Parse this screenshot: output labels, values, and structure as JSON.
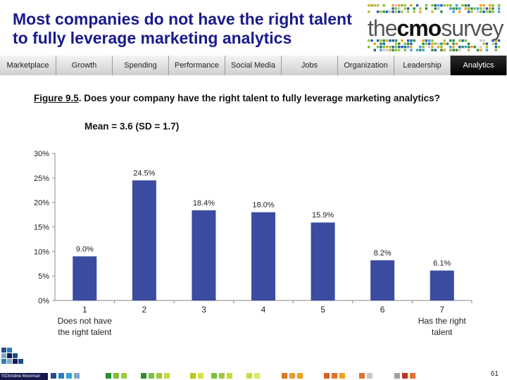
{
  "title": "Most companies do not have the right talent to fully leverage marketing analytics",
  "logo": {
    "prefix": "the",
    "middle": "cmo",
    "suffix": "survey"
  },
  "nav": {
    "tabs": [
      "Marketplace",
      "Growth",
      "Spending",
      "Performance",
      "Social Media",
      "Jobs",
      "Organization",
      "Leadership",
      "Analytics"
    ],
    "active": "Analytics"
  },
  "figure": {
    "number": "Figure 9.5",
    "question": ".  Does your company have the right talent to fully leverage marketing analytics?",
    "mean": "Mean = 3.6 (SD = 1.7)"
  },
  "chart_data": {
    "type": "bar",
    "categories": [
      "1",
      "2",
      "3",
      "4",
      "5",
      "6",
      "7"
    ],
    "category_sublabels": [
      "Does not have\nthe right talent",
      "",
      "",
      "",
      "",
      "",
      "Has the right\ntalent"
    ],
    "values": [
      9.0,
      24.5,
      18.4,
      18.0,
      15.9,
      8.2,
      6.1
    ],
    "data_labels": [
      "9.0%",
      "24.5%",
      "18.4%",
      "18.0%",
      "15.9%",
      "8.2%",
      "6.1%"
    ],
    "ylim": [
      0,
      30
    ],
    "yticks": [
      "0%",
      "5%",
      "10%",
      "15%",
      "20%",
      "25%",
      "30%"
    ],
    "bar_color": "#3a4ba0",
    "grid": false
  },
  "footer": {
    "copyright": "©Christine Moorman",
    "page_number": "61"
  },
  "colors": {
    "title": "#1a1a8c",
    "accent_dark": "#17174f"
  }
}
